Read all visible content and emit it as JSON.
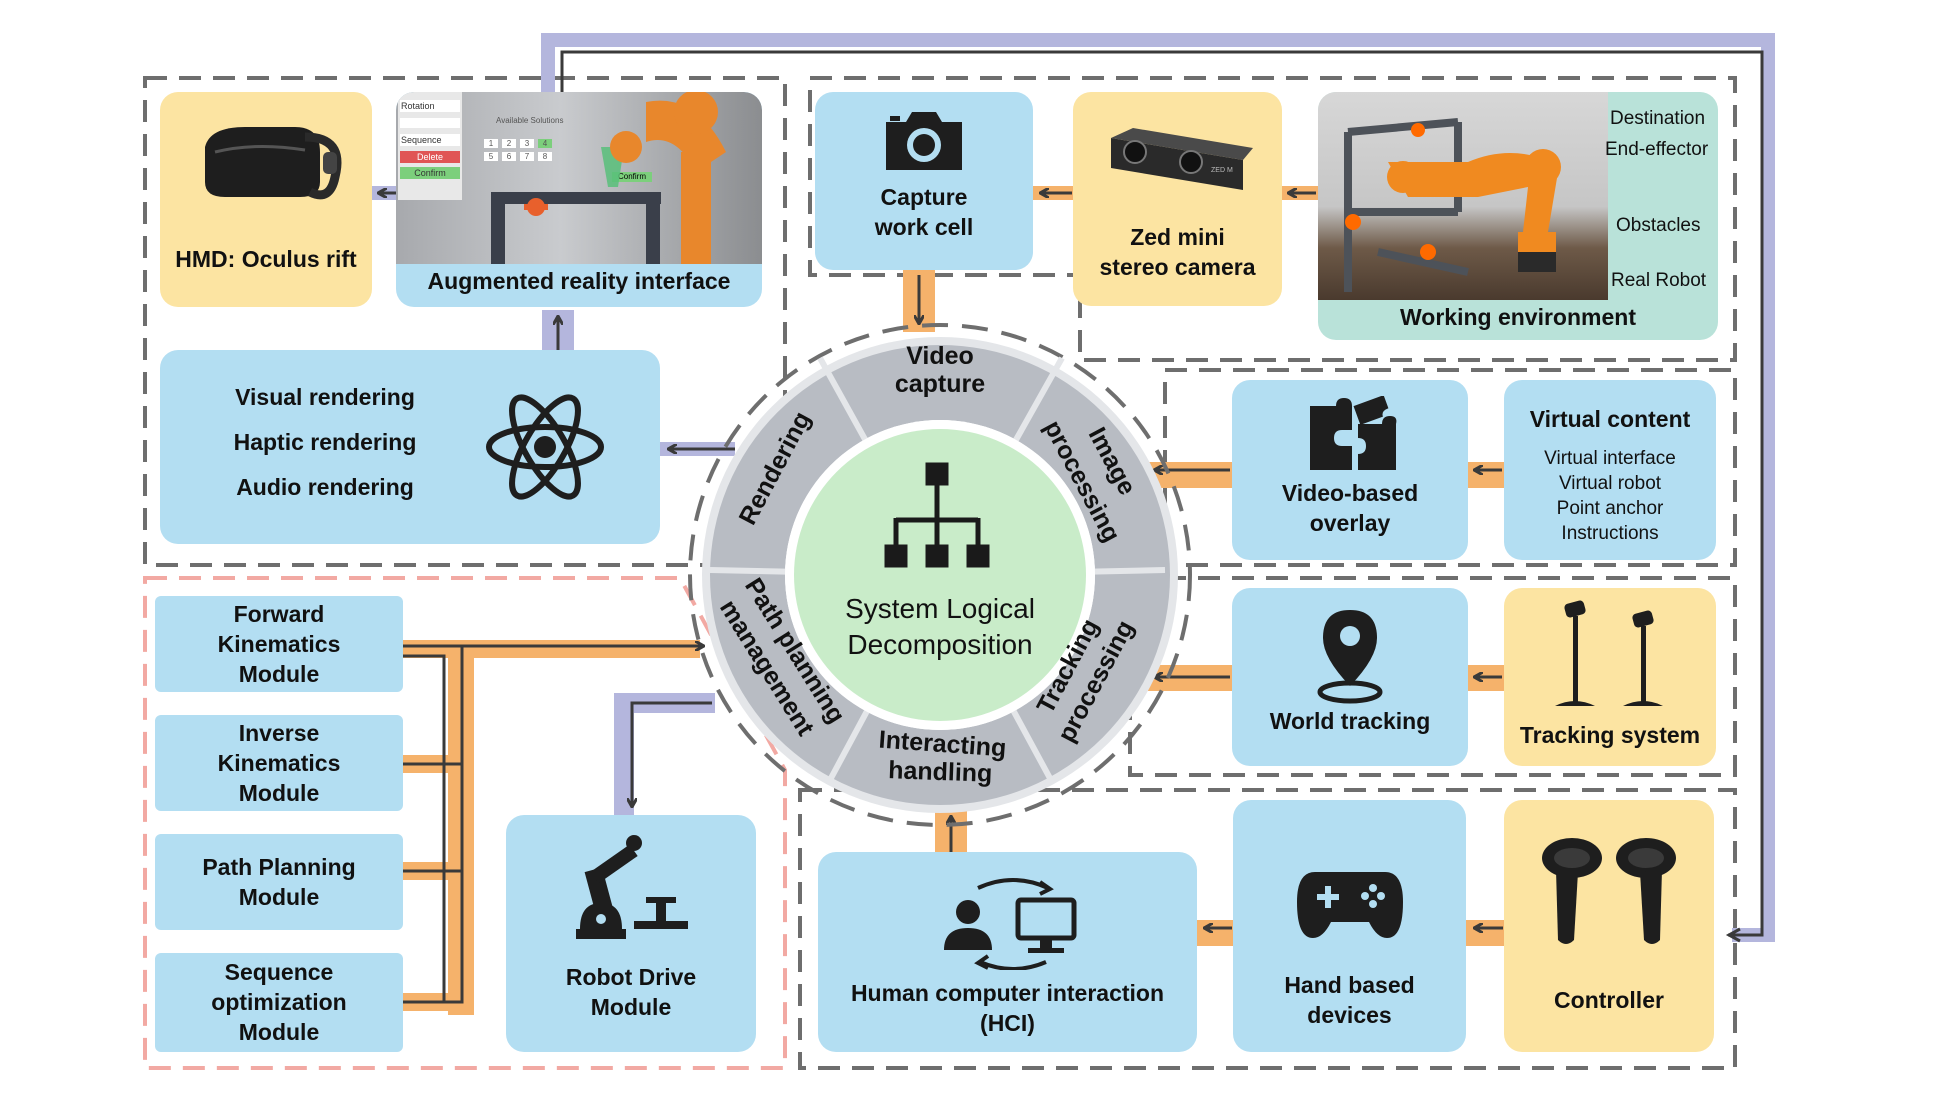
{
  "center": {
    "line1": "System Logical",
    "line2": "Decomposition"
  },
  "ring_labels": {
    "video_capture": [
      "Video",
      "capture"
    ],
    "image_processing": [
      "Image",
      "processing"
    ],
    "tracking_processing": [
      "Tracking",
      "processing"
    ],
    "interacting_handling": [
      "Interacting",
      "handling"
    ],
    "path_planning_management": [
      "Path planning",
      "management"
    ],
    "rendering": "Rendering"
  },
  "boxes": {
    "hmd": "HMD: Oculus rift",
    "ar_interface": "Augmented reality interface",
    "ar_panel": {
      "items": [
        "Rotation",
        "Sequence",
        "Delete",
        "Confirm"
      ],
      "title": "Available Solutions",
      "numbers": [
        "1",
        "2",
        "3",
        "4",
        "5",
        "6",
        "7",
        "8"
      ],
      "confirm": "Confirm"
    },
    "rendering_list": [
      "Visual rendering",
      "Haptic rendering",
      "Audio rendering"
    ],
    "capture": [
      "Capture",
      "work cell"
    ],
    "zed": [
      "Zed mini",
      "stereo camera"
    ],
    "zed_brand": "ZED M",
    "working_environment": "Working environment",
    "working_annotations": [
      "Destination",
      "End-effector",
      "Obstacles",
      "Real Robot"
    ],
    "video_overlay": [
      "Video-based",
      "overlay"
    ],
    "virtual_content": {
      "title": "Virtual content",
      "items": [
        "Virtual interface",
        "Virtual robot",
        "Point anchor",
        "Instructions"
      ]
    },
    "world_tracking": "World tracking",
    "tracking_system": "Tracking system",
    "hci": [
      "Human computer interaction",
      "(HCI)"
    ],
    "hand_devices": [
      "Hand based",
      "devices"
    ],
    "controller": "Controller",
    "robot_drive": [
      "Robot Drive",
      "Module"
    ],
    "forward_kinematics": [
      "Forward",
      "Kinematics",
      "Module"
    ],
    "inverse_kinematics": [
      "Inverse",
      "Kinematics",
      "Module"
    ],
    "path_planning_module": [
      "Path Planning",
      "Module"
    ],
    "sequence_optimization": [
      "Sequence",
      "optimization",
      "Module"
    ]
  },
  "colors": {
    "box_blue": "#b3def2",
    "box_yellow": "#fce4a2",
    "box_teal": "#b9e2d9",
    "arrow_orange": "#f5b26b",
    "arrow_purple": "#b4b6dd",
    "arrow_dark": "#3a3a3a",
    "ring_gray": "#b8bcc3",
    "center_green": "#c9ecc9",
    "dash_gray": "#6e6e6e",
    "dash_red": "#f2a9a3"
  },
  "icons": [
    "camera-icon",
    "atom-icon",
    "puzzle-icon",
    "location-pin-icon",
    "gamepad-icon",
    "hci-icon",
    "robot-arm-icon",
    "hierarchy-icon",
    "vr-headset-icon",
    "tracker-icon",
    "motion-controller-icon",
    "stereo-camera-icon"
  ]
}
